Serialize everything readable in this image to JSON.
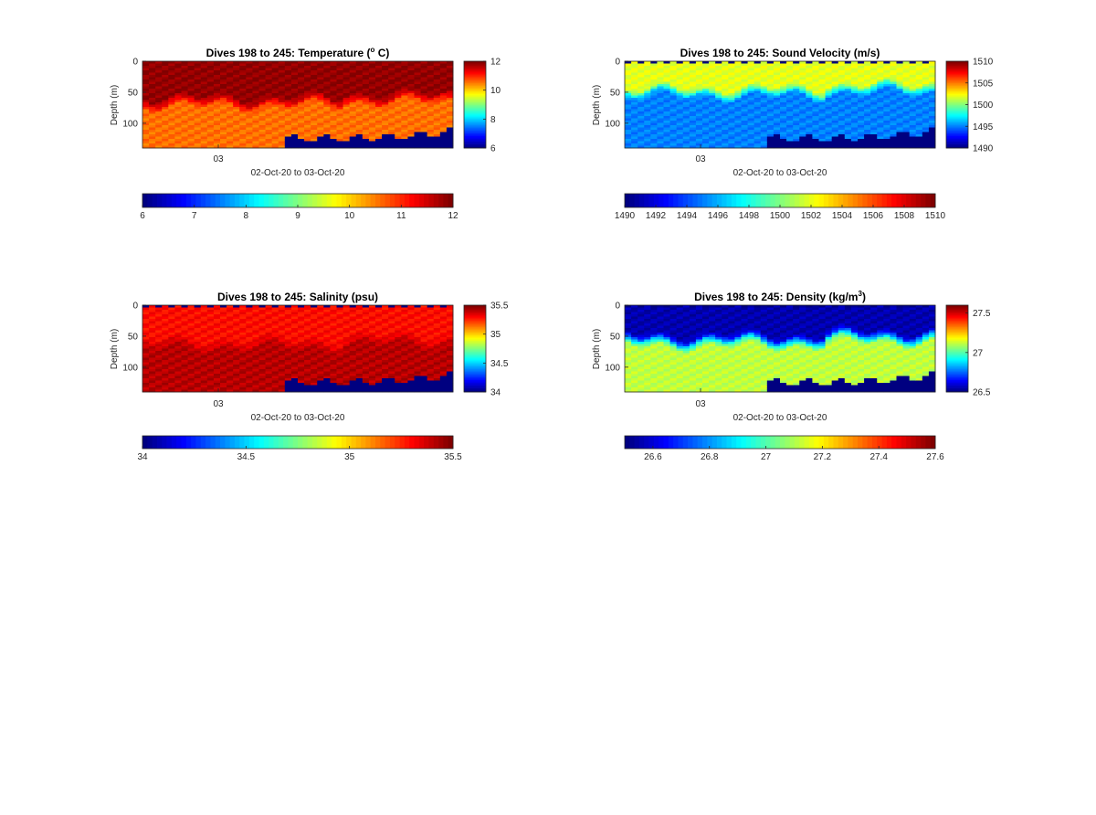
{
  "chart_data": [
    {
      "type": "heatmap",
      "title_prefix": "Dives 198 to 245: Temperature (",
      "title_sup": "o",
      "title_suffix": " C)",
      "xlabel": "02-Oct-20 to 03-Oct-20",
      "ylabel": "Depth (m)",
      "xtick_labels": [
        "03"
      ],
      "ylim": [
        0,
        140
      ],
      "yticks": [
        0,
        50,
        100
      ],
      "clim": [
        6,
        12
      ],
      "side_colorbar_ticks": [
        "6",
        "8",
        "10",
        "12"
      ],
      "bottom_colorbar_ticks": [
        "6",
        "7",
        "8",
        "9",
        "10",
        "11",
        "12"
      ],
      "colormap": "jet",
      "columns": 48,
      "profile": {
        "surface_value": 11.9,
        "deep_value": 10.6,
        "thermocline_depth_m": [
          55,
          78
        ],
        "shallow_mixed_value": 11.9
      },
      "bottom_no_data_depth_m": 125,
      "grid": false
    },
    {
      "type": "heatmap",
      "title": "Dives 198 to 245: Sound Velocity (m/s)",
      "xlabel": "02-Oct-20 to 03-Oct-20",
      "ylabel": "Depth (m)",
      "xtick_labels": [
        "03"
      ],
      "ylim": [
        0,
        140
      ],
      "yticks": [
        0,
        50,
        100
      ],
      "clim": [
        1490,
        1510
      ],
      "side_colorbar_ticks": [
        "1490",
        "1495",
        "1500",
        "1505",
        "1510"
      ],
      "bottom_colorbar_ticks": [
        "1490",
        "1492",
        "1494",
        "1496",
        "1498",
        "1500",
        "1502",
        "1504",
        "1506",
        "1508",
        "1510"
      ],
      "colormap": "jet",
      "columns": 48,
      "profile": {
        "surface_value": 1502,
        "deep_value": 1495,
        "thermocline_depth_m": [
          40,
          60
        ]
      },
      "bottom_no_data_depth_m": 125,
      "grid": false
    },
    {
      "type": "heatmap",
      "title": "Dives 198 to 245: Salinity (psu)",
      "xlabel": "02-Oct-20 to 03-Oct-20",
      "ylabel": "Depth (m)",
      "xtick_labels": [
        "03"
      ],
      "ylim": [
        0,
        140
      ],
      "yticks": [
        0,
        50,
        100
      ],
      "clim": [
        34,
        35.5
      ],
      "side_colorbar_ticks": [
        "34",
        "34.5",
        "35",
        "35.5"
      ],
      "bottom_colorbar_ticks": [
        "34",
        "34.5",
        "35",
        "35.5"
      ],
      "colormap": "jet",
      "columns": 48,
      "profile": {
        "surface_value": 35.3,
        "deep_value": 35.42,
        "thermocline_depth_m": [
          50,
          75
        ]
      },
      "bottom_no_data_depth_m": 125,
      "grid": false
    },
    {
      "type": "heatmap",
      "title_prefix": "Dives 198 to 245: Density (kg/m",
      "title_sup": "3",
      "title_suffix": ")",
      "xlabel": "02-Oct-20 to 03-Oct-20",
      "ylabel": "Depth (m)",
      "xtick_labels": [
        "03"
      ],
      "ylim": [
        0,
        140
      ],
      "yticks": [
        0,
        50,
        100
      ],
      "clim": [
        26.5,
        27.6
      ],
      "side_colorbar_ticks": [
        "26.5",
        "27",
        "27.5"
      ],
      "bottom_colorbar_ticks": [
        "26.6",
        "26.8",
        "27",
        "27.2",
        "27.4",
        "27.6"
      ],
      "colormap": "jet",
      "columns": 48,
      "profile": {
        "surface_value": 26.55,
        "deep_value": 27.12,
        "thermocline_depth_m": [
          45,
          70
        ]
      },
      "bottom_no_data_depth_m": 125,
      "grid": false
    }
  ]
}
